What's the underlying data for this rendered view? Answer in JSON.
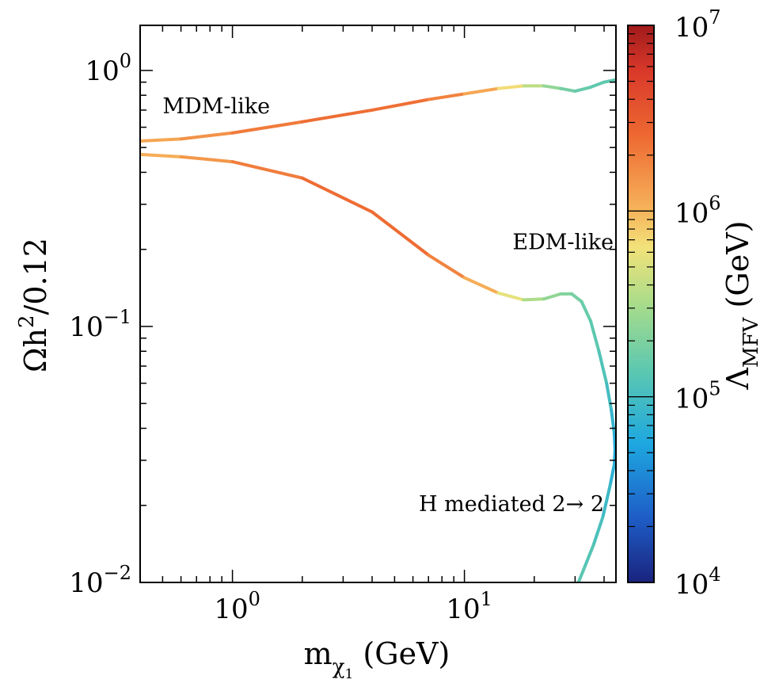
{
  "chart_data": {
    "type": "line",
    "x_scale": "log",
    "y_scale": "log",
    "xlim": [
      0.4,
      45
    ],
    "ylim": [
      0.01,
      1.5
    ],
    "grid": false,
    "axes": {
      "xlabel_main": "m",
      "xlabel_sub": "χ",
      "xlabel_subsub": "1",
      "xlabel_unit": " (GeV)",
      "ylabel_main": "Ωh",
      "ylabel_sup": "2",
      "ylabel_tail": "/0.12"
    },
    "x_ticks": [
      {
        "value": 1,
        "base": "10",
        "exp": "0"
      },
      {
        "value": 10,
        "base": "10",
        "exp": "1"
      }
    ],
    "y_ticks": [
      {
        "value": 1,
        "base": "10",
        "exp": "0"
      },
      {
        "value": 0.1,
        "base": "10",
        "exp": "−1"
      },
      {
        "value": 0.01,
        "base": "10",
        "exp": "−2"
      }
    ],
    "colorbar": {
      "scale": "log",
      "range": [
        10000,
        10000000
      ],
      "label_main": "Λ",
      "label_sub": "MFV",
      "label_unit": " (GeV)",
      "ticks": [
        {
          "value": 10000000,
          "base": "10",
          "exp": "7"
        },
        {
          "value": 1000000,
          "base": "10",
          "exp": "6"
        },
        {
          "value": 100000,
          "base": "10",
          "exp": "5"
        },
        {
          "value": 10000,
          "base": "10",
          "exp": "4"
        }
      ]
    },
    "series": [
      {
        "name": "MDM-like",
        "points": [
          {
            "x": 0.4,
            "y": 0.53,
            "c": 1100000
          },
          {
            "x": 0.6,
            "y": 0.54,
            "c": 1300000
          },
          {
            "x": 1.0,
            "y": 0.57,
            "c": 1800000
          },
          {
            "x": 2.0,
            "y": 0.63,
            "c": 2300000
          },
          {
            "x": 4.0,
            "y": 0.7,
            "c": 2500000
          },
          {
            "x": 7.0,
            "y": 0.77,
            "c": 2200000
          },
          {
            "x": 10,
            "y": 0.81,
            "c": 1600000
          },
          {
            "x": 14,
            "y": 0.85,
            "c": 900000
          },
          {
            "x": 18,
            "y": 0.87,
            "c": 500000
          },
          {
            "x": 22,
            "y": 0.87,
            "c": 300000
          },
          {
            "x": 26,
            "y": 0.85,
            "c": 200000
          },
          {
            "x": 30,
            "y": 0.83,
            "c": 160000
          },
          {
            "x": 35,
            "y": 0.86,
            "c": 150000
          },
          {
            "x": 40,
            "y": 0.9,
            "c": 140000
          },
          {
            "x": 45,
            "y": 0.92,
            "c": 140000
          }
        ]
      },
      {
        "name": "EDM-like",
        "points": [
          {
            "x": 0.4,
            "y": 0.47,
            "c": 1000000
          },
          {
            "x": 0.6,
            "y": 0.46,
            "c": 1200000
          },
          {
            "x": 1.0,
            "y": 0.44,
            "c": 1700000
          },
          {
            "x": 2.0,
            "y": 0.38,
            "c": 2300000
          },
          {
            "x": 4.0,
            "y": 0.28,
            "c": 2600000
          },
          {
            "x": 7.0,
            "y": 0.19,
            "c": 2300000
          },
          {
            "x": 10,
            "y": 0.155,
            "c": 1500000
          },
          {
            "x": 14,
            "y": 0.135,
            "c": 800000
          },
          {
            "x": 18,
            "y": 0.127,
            "c": 400000
          },
          {
            "x": 22,
            "y": 0.128,
            "c": 280000
          },
          {
            "x": 26,
            "y": 0.134,
            "c": 220000
          },
          {
            "x": 29,
            "y": 0.134,
            "c": 200000
          },
          {
            "x": 32,
            "y": 0.125,
            "c": 170000
          },
          {
            "x": 35,
            "y": 0.105,
            "c": 150000
          },
          {
            "x": 38,
            "y": 0.08,
            "c": 130000
          },
          {
            "x": 41,
            "y": 0.06,
            "c": 110000
          },
          {
            "x": 43,
            "y": 0.047,
            "c": 90000
          },
          {
            "x": 44.3,
            "y": 0.038,
            "c": 70000
          },
          {
            "x": 44.6,
            "y": 0.033,
            "c": 60000
          }
        ]
      },
      {
        "name": "H mediated 2→ 2",
        "points": [
          {
            "x": 44.6,
            "y": 0.033,
            "c": 60000
          },
          {
            "x": 44.3,
            "y": 0.029,
            "c": 65000
          },
          {
            "x": 42.5,
            "y": 0.024,
            "c": 80000
          },
          {
            "x": 39.5,
            "y": 0.018,
            "c": 100000
          },
          {
            "x": 36,
            "y": 0.014,
            "c": 120000
          },
          {
            "x": 33,
            "y": 0.0115,
            "c": 130000
          },
          {
            "x": 31,
            "y": 0.01,
            "c": 140000
          }
        ]
      }
    ],
    "annotations": [
      {
        "text": "MDM-like",
        "x": 0.5,
        "y": 0.68,
        "anchor": "start"
      },
      {
        "text": "EDM-like",
        "x": 44,
        "y": 0.2,
        "anchor": "end"
      },
      {
        "text": "H mediated 2→ 2",
        "x": 40,
        "y": 0.019,
        "anchor": "end"
      }
    ]
  }
}
